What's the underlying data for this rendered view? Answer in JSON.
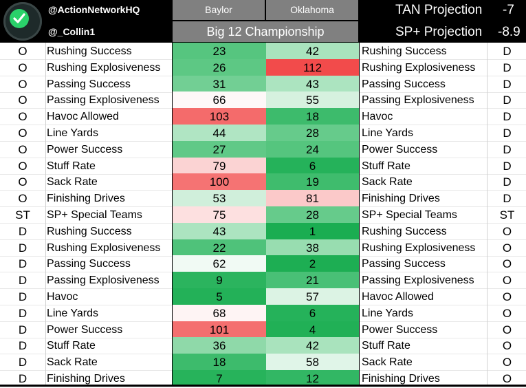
{
  "header": {
    "handle_primary": "@ActionNetworkHQ",
    "handle_secondary": "@_Collin1",
    "team_left": "Baylor",
    "team_right": "Oklahoma",
    "game_title": "Big 12 Championship",
    "tan_projection_label": "TAN Projection",
    "tan_projection_value": "-7",
    "sp_projection_label": "SP+ Projection",
    "sp_projection_value": "-8.9",
    "logo_icon": "checkmark-icon"
  },
  "colors": {
    "header_bg": "#000000",
    "team_bg": "#808080",
    "logo_green": "#2ad16a"
  },
  "rows": [
    {
      "side_l": "O",
      "label_l": "Rushing Success",
      "baylor": "23",
      "oklahoma": "42",
      "label_r": "Rushing Success",
      "side_r": "D",
      "baylor_color": "#56c57f",
      "oklahoma_color": "#a9e3bd"
    },
    {
      "side_l": "O",
      "label_l": "Rushing Explosiveness",
      "baylor": "26",
      "oklahoma": "112",
      "label_r": "Rushing Explosiveness",
      "side_r": "D",
      "baylor_color": "#5dc884",
      "oklahoma_color": "#f24b4b"
    },
    {
      "side_l": "O",
      "label_l": "Passing Success",
      "baylor": "31",
      "oklahoma": "43",
      "label_r": "Passing Success",
      "side_r": "D",
      "baylor_color": "#72cf94",
      "oklahoma_color": "#ace4c0"
    },
    {
      "side_l": "O",
      "label_l": "Passing Explosiveness",
      "baylor": "66",
      "oklahoma": "55",
      "label_r": "Passing Explosiveness",
      "side_r": "D",
      "baylor_color": "#fef8f8",
      "oklahoma_color": "#d6f1df"
    },
    {
      "side_l": "O",
      "label_l": "Havoc Allowed",
      "baylor": "103",
      "oklahoma": "18",
      "label_r": "Havoc",
      "side_r": "D",
      "baylor_color": "#f46b6b",
      "oklahoma_color": "#3dbb6c"
    },
    {
      "side_l": "O",
      "label_l": "Line Yards",
      "baylor": "44",
      "oklahoma": "28",
      "label_r": "Line Yards",
      "side_r": "D",
      "baylor_color": "#b0e5c3",
      "oklahoma_color": "#66cb8b"
    },
    {
      "side_l": "O",
      "label_l": "Power Success",
      "baylor": "27",
      "oklahoma": "24",
      "label_r": "Power Success",
      "side_r": "D",
      "baylor_color": "#60c987",
      "oklahoma_color": "#55c57e"
    },
    {
      "side_l": "O",
      "label_l": "Stuff Rate",
      "baylor": "79",
      "oklahoma": "6",
      "label_r": "Stuff Rate",
      "side_r": "D",
      "baylor_color": "#fbd3d3",
      "oklahoma_color": "#25b25a"
    },
    {
      "side_l": "O",
      "label_l": "Sack Rate",
      "baylor": "100",
      "oklahoma": "19",
      "label_r": "Sack Rate",
      "side_r": "D",
      "baylor_color": "#f57373",
      "oklahoma_color": "#3fbc6d"
    },
    {
      "side_l": "O",
      "label_l": "Finishing Drives",
      "baylor": "53",
      "oklahoma": "81",
      "label_r": "Finishing Drives",
      "side_r": "D",
      "baylor_color": "#d0efdb",
      "oklahoma_color": "#fbc9c9"
    },
    {
      "side_l": "ST",
      "label_l": "SP+ Special Teams",
      "baylor": "75",
      "oklahoma": "28",
      "label_r": "SP+ Special Teams",
      "side_r": "ST",
      "baylor_color": "#fde0e0",
      "oklahoma_color": "#66cb8b"
    },
    {
      "side_l": "D",
      "label_l": "Rushing Success",
      "baylor": "43",
      "oklahoma": "1",
      "label_r": "Rushing Success",
      "side_r": "O",
      "baylor_color": "#ace4c0",
      "oklahoma_color": "#1aad51"
    },
    {
      "side_l": "D",
      "label_l": "Rushing Explosiveness",
      "baylor": "22",
      "oklahoma": "38",
      "label_r": "Rushing Explosiveness",
      "side_r": "O",
      "baylor_color": "#4fc27a",
      "oklahoma_color": "#98ddb0"
    },
    {
      "side_l": "D",
      "label_l": "Passing Success",
      "baylor": "62",
      "oklahoma": "2",
      "label_r": "Passing Success",
      "side_r": "O",
      "baylor_color": "#f1faf4",
      "oklahoma_color": "#1dae53"
    },
    {
      "side_l": "D",
      "label_l": "Passing Explosiveness",
      "baylor": "9",
      "oklahoma": "21",
      "label_r": "Passing Explosiveness",
      "side_r": "O",
      "baylor_color": "#2bb45e",
      "oklahoma_color": "#49c076"
    },
    {
      "side_l": "D",
      "label_l": "Havoc",
      "baylor": "5",
      "oklahoma": "57",
      "label_r": "Havoc Allowed",
      "side_r": "O",
      "baylor_color": "#23b158",
      "oklahoma_color": "#dcf3e4"
    },
    {
      "side_l": "D",
      "label_l": "Line Yards",
      "baylor": "68",
      "oklahoma": "6",
      "label_r": "Line Yards",
      "side_r": "O",
      "baylor_color": "#fef4f4",
      "oklahoma_color": "#25b25a"
    },
    {
      "side_l": "D",
      "label_l": "Power Success",
      "baylor": "101",
      "oklahoma": "4",
      "label_r": "Power Success",
      "side_r": "O",
      "baylor_color": "#f46f6f",
      "oklahoma_color": "#21b056"
    },
    {
      "side_l": "D",
      "label_l": "Stuff Rate",
      "baylor": "36",
      "oklahoma": "42",
      "label_r": "Stuff Rate",
      "side_r": "O",
      "baylor_color": "#8fd9a9",
      "oklahoma_color": "#a9e3bd"
    },
    {
      "side_l": "D",
      "label_l": "Sack Rate",
      "baylor": "18",
      "oklahoma": "58",
      "label_r": "Sack Rate",
      "side_r": "O",
      "baylor_color": "#3dbb6c",
      "oklahoma_color": "#e0f5e8"
    },
    {
      "side_l": "D",
      "label_l": "Finishing Drives",
      "baylor": "7",
      "oklahoma": "12",
      "label_r": "Finishing Drives",
      "side_r": "O",
      "baylor_color": "#27b35b",
      "oklahoma_color": "#32b764"
    }
  ]
}
